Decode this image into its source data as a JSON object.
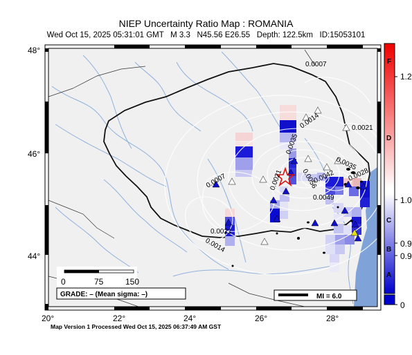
{
  "header": {
    "title": "NIEP Uncertainty Ratio Map : ROMANIA",
    "subtitle": "Wed Oct 15, 2025 05:31:01 GMT   M 3.3   N45.56 E26.55   Depth: 122.5km   ID:15053101"
  },
  "axes": {
    "lat_labels": [
      "48°",
      "46°",
      "44°"
    ],
    "lon_labels": [
      "20°",
      "22°",
      "24°",
      "26°",
      "28°"
    ]
  },
  "scale_bar": {
    "ticks": [
      "0",
      "75",
      "150"
    ]
  },
  "grade_box": {
    "text": "GRADE: – (Mean sigma: –)"
  },
  "mi_legend": {
    "text": "MI = 6.0"
  },
  "contour_labels": [
    "0.0007",
    "0.0014",
    "0.0021",
    "0.0035",
    "0.0042",
    "0.0028",
    "0.0056",
    "0.0049",
    "0.0007",
    "0.0021",
    "0.0014",
    "0.0035",
    "0.0021"
  ],
  "colorbar": {
    "grades": [
      "F",
      "D",
      "C",
      "B",
      "A"
    ],
    "values": [
      "1.2",
      "1.0",
      "0.9",
      "0.9",
      "0"
    ]
  },
  "colors": {
    "land": "#f0f0f0",
    "sea": "#7fa3d9",
    "rivers": "#8fb1dc",
    "contours": "#ffffff",
    "epicenter": "#e01010"
  },
  "footer": {
    "text": "Map Version 1 Processed Wed Oct 15, 2025 06:37:49 AM GST"
  }
}
